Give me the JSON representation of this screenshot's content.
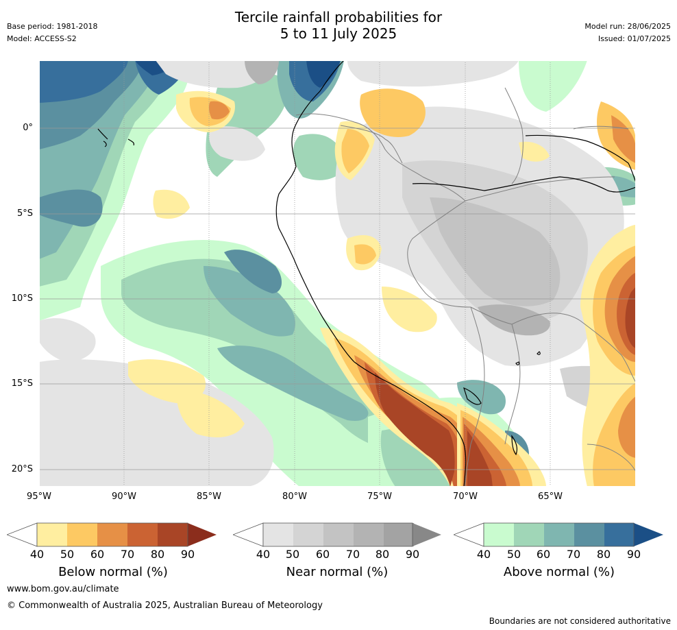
{
  "header": {
    "title_line1": "Tercile rainfall probabilities for",
    "title_line2": "5 to 11 July 2025",
    "base_period": "Base period: 1981-2018",
    "model": "Model: ACCESS-S2",
    "model_run": "Model run: 28/06/2025",
    "issued": "Issued: 01/07/2025"
  },
  "map": {
    "lat_labels": [
      "0°",
      "5°S",
      "10°S",
      "15°S",
      "20°S"
    ],
    "lon_labels": [
      "95°W",
      "90°W",
      "85°W",
      "80°W",
      "75°W",
      "70°W",
      "65°W"
    ],
    "gridline_color": "#999999",
    "coastline_color": "#000000",
    "border_color": "#808080"
  },
  "colorbars": [
    {
      "label": "Below normal (%)",
      "ticks": [
        "40",
        "50",
        "60",
        "70",
        "80",
        "90"
      ],
      "colors": [
        "#ffeea0",
        "#fdc963",
        "#e69046",
        "#cb6333",
        "#a94526",
        "#8b2d1c"
      ]
    },
    {
      "label": "Near normal (%)",
      "ticks": [
        "40",
        "50",
        "60",
        "70",
        "80",
        "90"
      ],
      "colors": [
        "#e4e4e4",
        "#d4d4d4",
        "#c3c3c3",
        "#b3b3b3",
        "#a3a3a3",
        "#888888"
      ]
    },
    {
      "label": "Above normal (%)",
      "ticks": [
        "40",
        "50",
        "60",
        "70",
        "80",
        "90"
      ],
      "colors": [
        "#c9fbcf",
        "#a0d6b7",
        "#7fb6b0",
        "#5b90a0",
        "#376f9c",
        "#1b4f86"
      ]
    }
  ],
  "footer": {
    "website": "www.bom.gov.au/climate",
    "copyright": "© Commonwealth of Australia 2025, Australian Bureau of Meteorology",
    "disclaimer": "Boundaries are not considered authoritative"
  }
}
